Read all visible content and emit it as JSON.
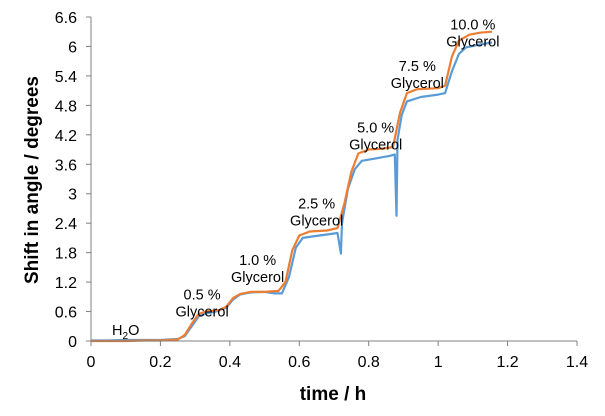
{
  "chart_data": {
    "type": "line",
    "title": "",
    "xlabel": "time / h",
    "ylabel": "Shift in angle / degrees",
    "xlim": [
      0,
      1.4
    ],
    "ylim": [
      0,
      6.6
    ],
    "x_ticks": [
      "0",
      "0.2",
      "0.4",
      "0.6",
      "0.8",
      "1",
      "1.2",
      "1.4"
    ],
    "y_ticks": [
      "0",
      "0.6",
      "1.2",
      "1.8",
      "2.4",
      "3",
      "3.6",
      "4.2",
      "4.8",
      "5.4",
      "6",
      "6.6"
    ],
    "grid": false,
    "legend": "none",
    "series": [
      {
        "color": "#5b9bd5",
        "points": [
          [
            0,
            0.01
          ],
          [
            0.05,
            0.01
          ],
          [
            0.1,
            0.02
          ],
          [
            0.15,
            0.02
          ],
          [
            0.2,
            0.02
          ],
          [
            0.25,
            0.04
          ],
          [
            0.27,
            0.1
          ],
          [
            0.29,
            0.3
          ],
          [
            0.31,
            0.5
          ],
          [
            0.33,
            0.56
          ],
          [
            0.36,
            0.6
          ],
          [
            0.39,
            0.68
          ],
          [
            0.41,
            0.85
          ],
          [
            0.43,
            0.95
          ],
          [
            0.46,
            0.99
          ],
          [
            0.5,
            1.0
          ],
          [
            0.53,
            0.97
          ],
          [
            0.55,
            0.97
          ],
          [
            0.57,
            1.3
          ],
          [
            0.59,
            1.9
          ],
          [
            0.61,
            2.1
          ],
          [
            0.65,
            2.14
          ],
          [
            0.69,
            2.18
          ],
          [
            0.71,
            2.2
          ],
          [
            0.72,
            1.78
          ],
          [
            0.723,
            2.4
          ],
          [
            0.74,
            3.1
          ],
          [
            0.76,
            3.5
          ],
          [
            0.78,
            3.67
          ],
          [
            0.82,
            3.72
          ],
          [
            0.86,
            3.77
          ],
          [
            0.875,
            3.8
          ],
          [
            0.88,
            2.55
          ],
          [
            0.883,
            4.1
          ],
          [
            0.895,
            4.6
          ],
          [
            0.91,
            4.88
          ],
          [
            0.95,
            4.97
          ],
          [
            1.0,
            5.02
          ],
          [
            1.02,
            5.05
          ],
          [
            1.04,
            5.5
          ],
          [
            1.06,
            5.85
          ],
          [
            1.08,
            5.98
          ],
          [
            1.12,
            6.04
          ],
          [
            1.155,
            6.08
          ]
        ]
      },
      {
        "color": "#ed7d31",
        "points": [
          [
            0,
            0.0
          ],
          [
            0.05,
            0.0
          ],
          [
            0.1,
            0.0
          ],
          [
            0.15,
            0.01
          ],
          [
            0.2,
            0.01
          ],
          [
            0.25,
            0.03
          ],
          [
            0.27,
            0.12
          ],
          [
            0.29,
            0.35
          ],
          [
            0.31,
            0.55
          ],
          [
            0.33,
            0.6
          ],
          [
            0.37,
            0.63
          ],
          [
            0.39,
            0.7
          ],
          [
            0.41,
            0.88
          ],
          [
            0.43,
            0.96
          ],
          [
            0.46,
            1.0
          ],
          [
            0.5,
            1.0
          ],
          [
            0.54,
            1.02
          ],
          [
            0.56,
            1.2
          ],
          [
            0.58,
            1.85
          ],
          [
            0.6,
            2.15
          ],
          [
            0.63,
            2.23
          ],
          [
            0.68,
            2.25
          ],
          [
            0.71,
            2.3
          ],
          [
            0.73,
            2.8
          ],
          [
            0.75,
            3.45
          ],
          [
            0.77,
            3.82
          ],
          [
            0.8,
            3.9
          ],
          [
            0.84,
            3.92
          ],
          [
            0.87,
            3.95
          ],
          [
            0.89,
            4.65
          ],
          [
            0.91,
            5.05
          ],
          [
            0.94,
            5.13
          ],
          [
            1.0,
            5.15
          ],
          [
            1.02,
            5.2
          ],
          [
            1.04,
            5.8
          ],
          [
            1.06,
            6.12
          ],
          [
            1.09,
            6.24
          ],
          [
            1.12,
            6.28
          ],
          [
            1.155,
            6.3
          ]
        ]
      }
    ],
    "annotations": [
      {
        "id": "h2o",
        "text_parts": [
          "H",
          "2",
          "O"
        ],
        "x": 0.1,
        "y": 0.12
      },
      {
        "id": "g05",
        "lines": [
          "0.5 %",
          "Glycerol"
        ],
        "x": 0.32,
        "y": 0.85
      },
      {
        "id": "g10",
        "lines": [
          "1.0 %",
          "Glycerol"
        ],
        "x": 0.48,
        "y": 1.55
      },
      {
        "id": "g25",
        "lines": [
          "2.5 %",
          "Glycerol"
        ],
        "x": 0.65,
        "y": 2.7
      },
      {
        "id": "g50",
        "lines": [
          "5.0 %",
          "Glycerol"
        ],
        "x": 0.82,
        "y": 4.25
      },
      {
        "id": "g75",
        "lines": [
          "7.5 %",
          "Glycerol"
        ],
        "x": 0.94,
        "y": 5.5
      },
      {
        "id": "g100",
        "lines": [
          "10.0 %",
          "Glycerol"
        ],
        "x": 1.1,
        "y": 6.35
      }
    ]
  }
}
